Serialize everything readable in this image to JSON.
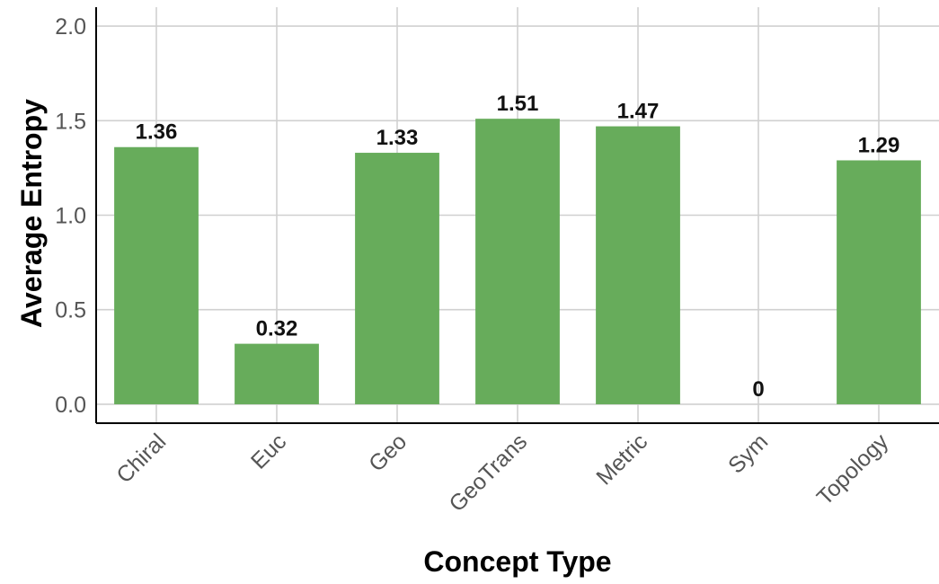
{
  "chart_data": {
    "type": "bar",
    "categories": [
      "Chiral",
      "Euc",
      "Geo",
      "GeoTrans",
      "Metric",
      "Sym",
      "Topology"
    ],
    "values": [
      1.36,
      0.32,
      1.33,
      1.51,
      1.47,
      0,
      1.29
    ],
    "value_labels": [
      "1.36",
      "0.32",
      "1.33",
      "1.51",
      "1.47",
      "0",
      "1.29"
    ],
    "xlabel": "Concept Type",
    "ylabel": "Average Entropy",
    "ylim": [
      -0.1,
      2.1
    ],
    "yticks": [
      0.0,
      0.5,
      1.0,
      1.5,
      2.0
    ],
    "ytick_labels": [
      "0.0",
      "0.5",
      "1.0",
      "1.5",
      "2.0"
    ],
    "grid": true,
    "bar_color": "#67ac5b"
  }
}
